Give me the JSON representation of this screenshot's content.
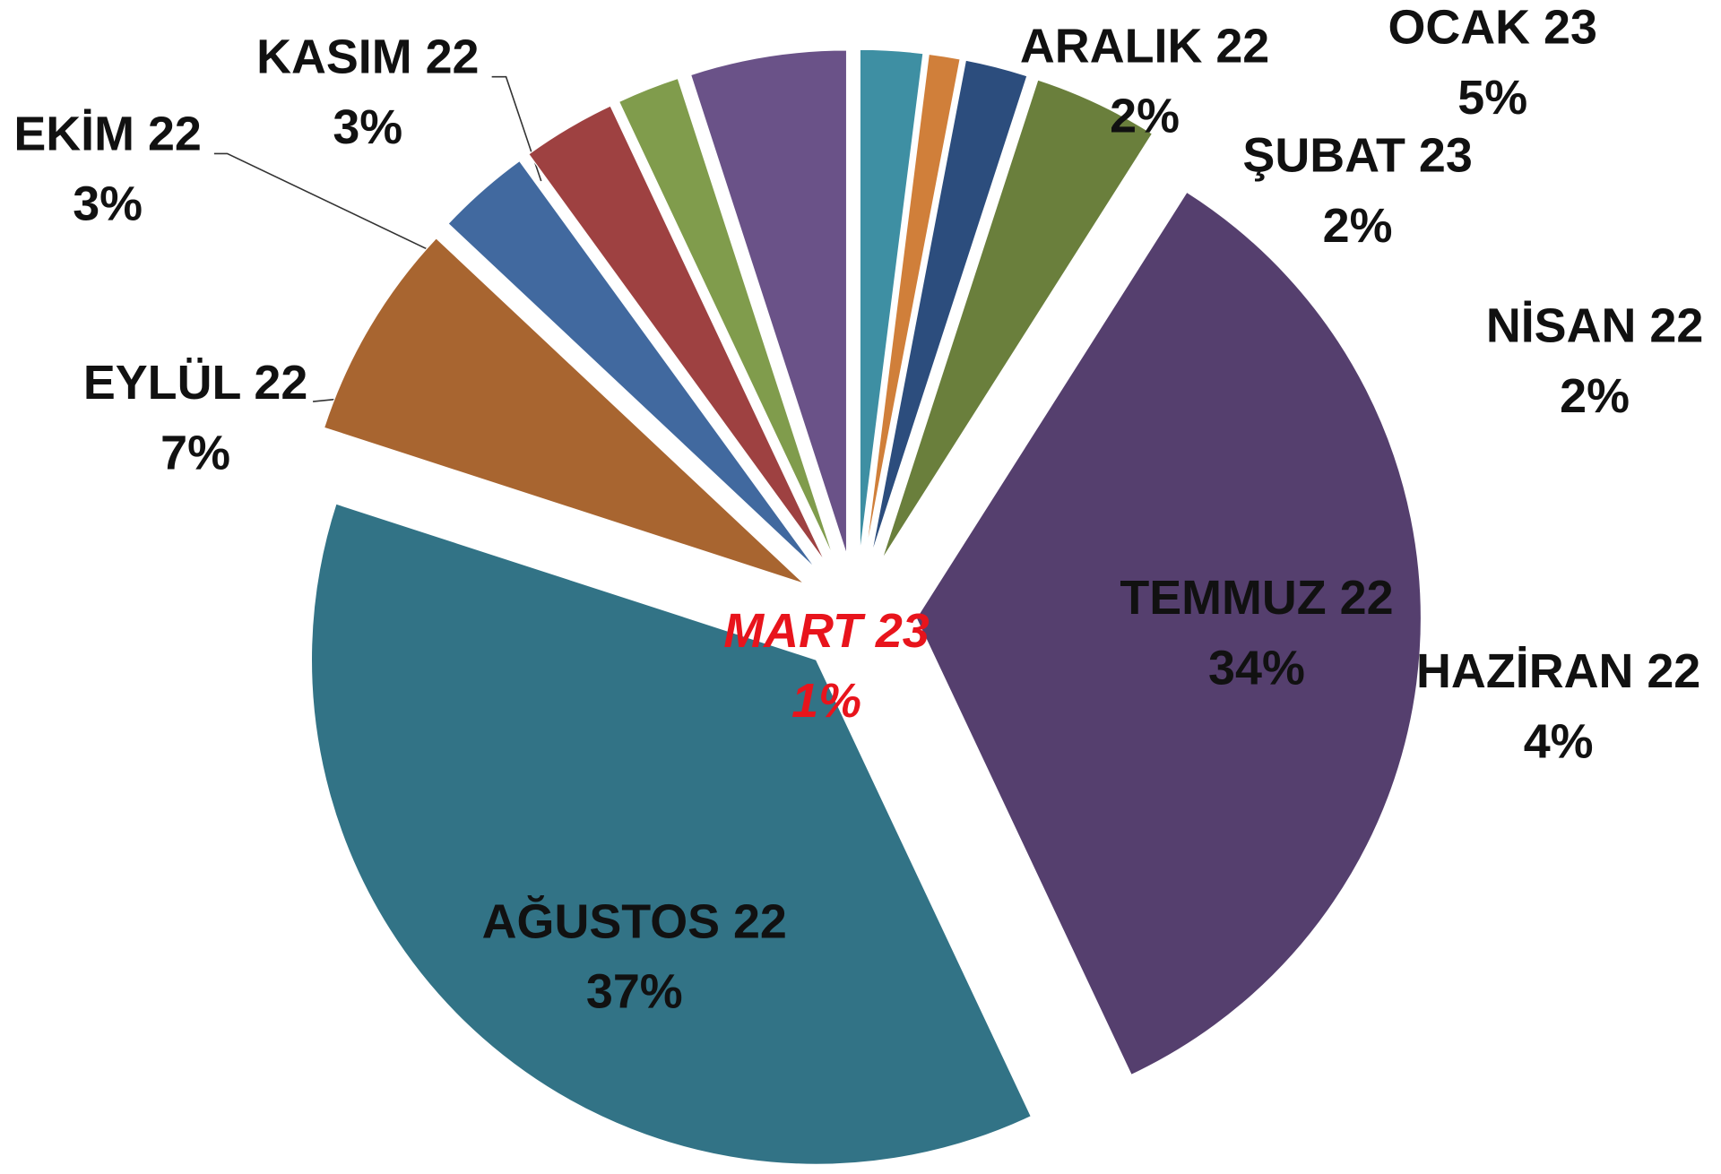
{
  "chart_data": {
    "type": "pie",
    "categories": [
      "NİSAN 22",
      "HAZİRAN 22",
      "TEMMUZ 22",
      "AĞUSTOS 22",
      "EYLÜL 22",
      "EKİM 22",
      "KASIM 22",
      "ARALIK 22",
      "OCAK 23",
      "ŞUBAT 23",
      "MART 23"
    ],
    "values": [
      2,
      4,
      34,
      37,
      7,
      3,
      3,
      2,
      5,
      2,
      1
    ],
    "value_labels": [
      "2%",
      "4%",
      "34%",
      "37%",
      "7%",
      "3%",
      "3%",
      "2%",
      "5%",
      "2%",
      "1%"
    ],
    "colors": [
      "#2c4d7d",
      "#6a7f3c",
      "#553f6e",
      "#327386",
      "#a86530",
      "#41699f",
      "#9e4141",
      "#809c4c",
      "#6a5288",
      "#3e8fa3",
      "#d07f3a"
    ]
  }
}
